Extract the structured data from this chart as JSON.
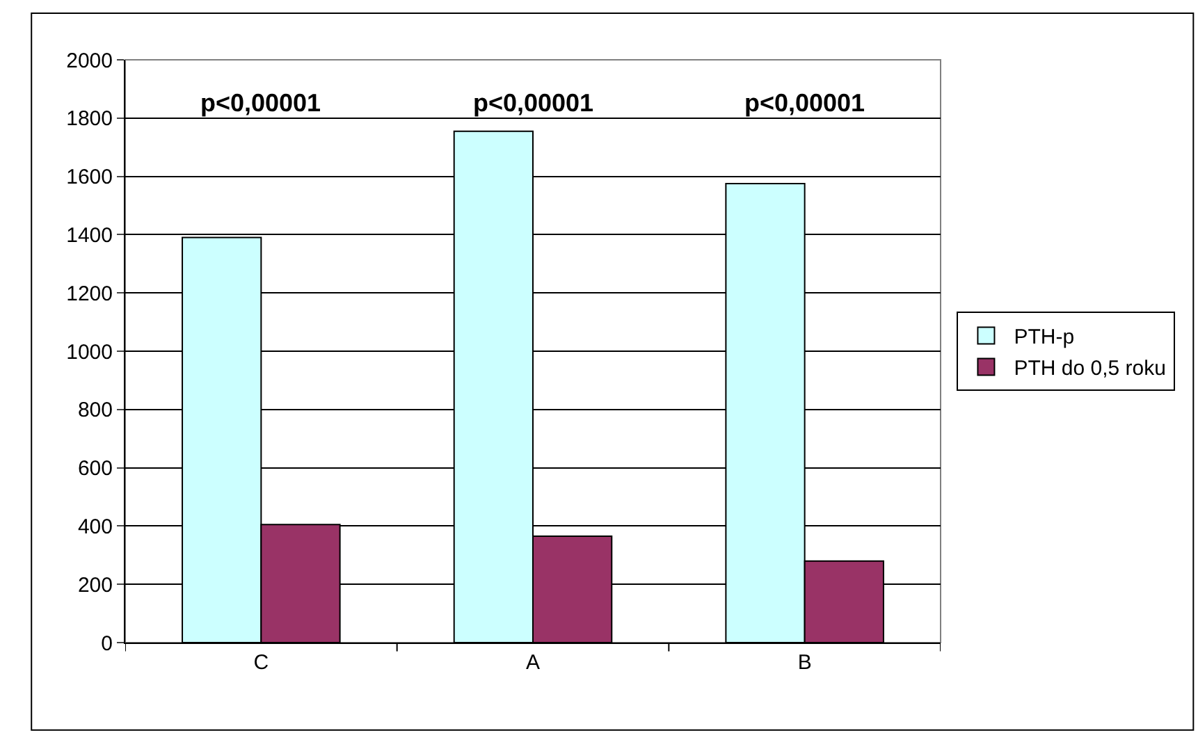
{
  "chart_data": {
    "type": "bar",
    "categories": [
      "C",
      "A",
      "B"
    ],
    "series": [
      {
        "name": "PTH-p",
        "color": "#ccffff",
        "values": [
          1390,
          1755,
          1575
        ]
      },
      {
        "name": "PTH do 0,5 roku",
        "color": "#993366",
        "values": [
          405,
          365,
          280
        ]
      }
    ],
    "ylim": [
      0,
      2000
    ],
    "yticks": [
      0,
      200,
      400,
      600,
      800,
      1000,
      1200,
      1400,
      1600,
      1800,
      2000
    ],
    "grid": "y",
    "legend": "right",
    "annotations": [
      "p<0,00001",
      "p<0,00001",
      "p<0,00001"
    ]
  }
}
